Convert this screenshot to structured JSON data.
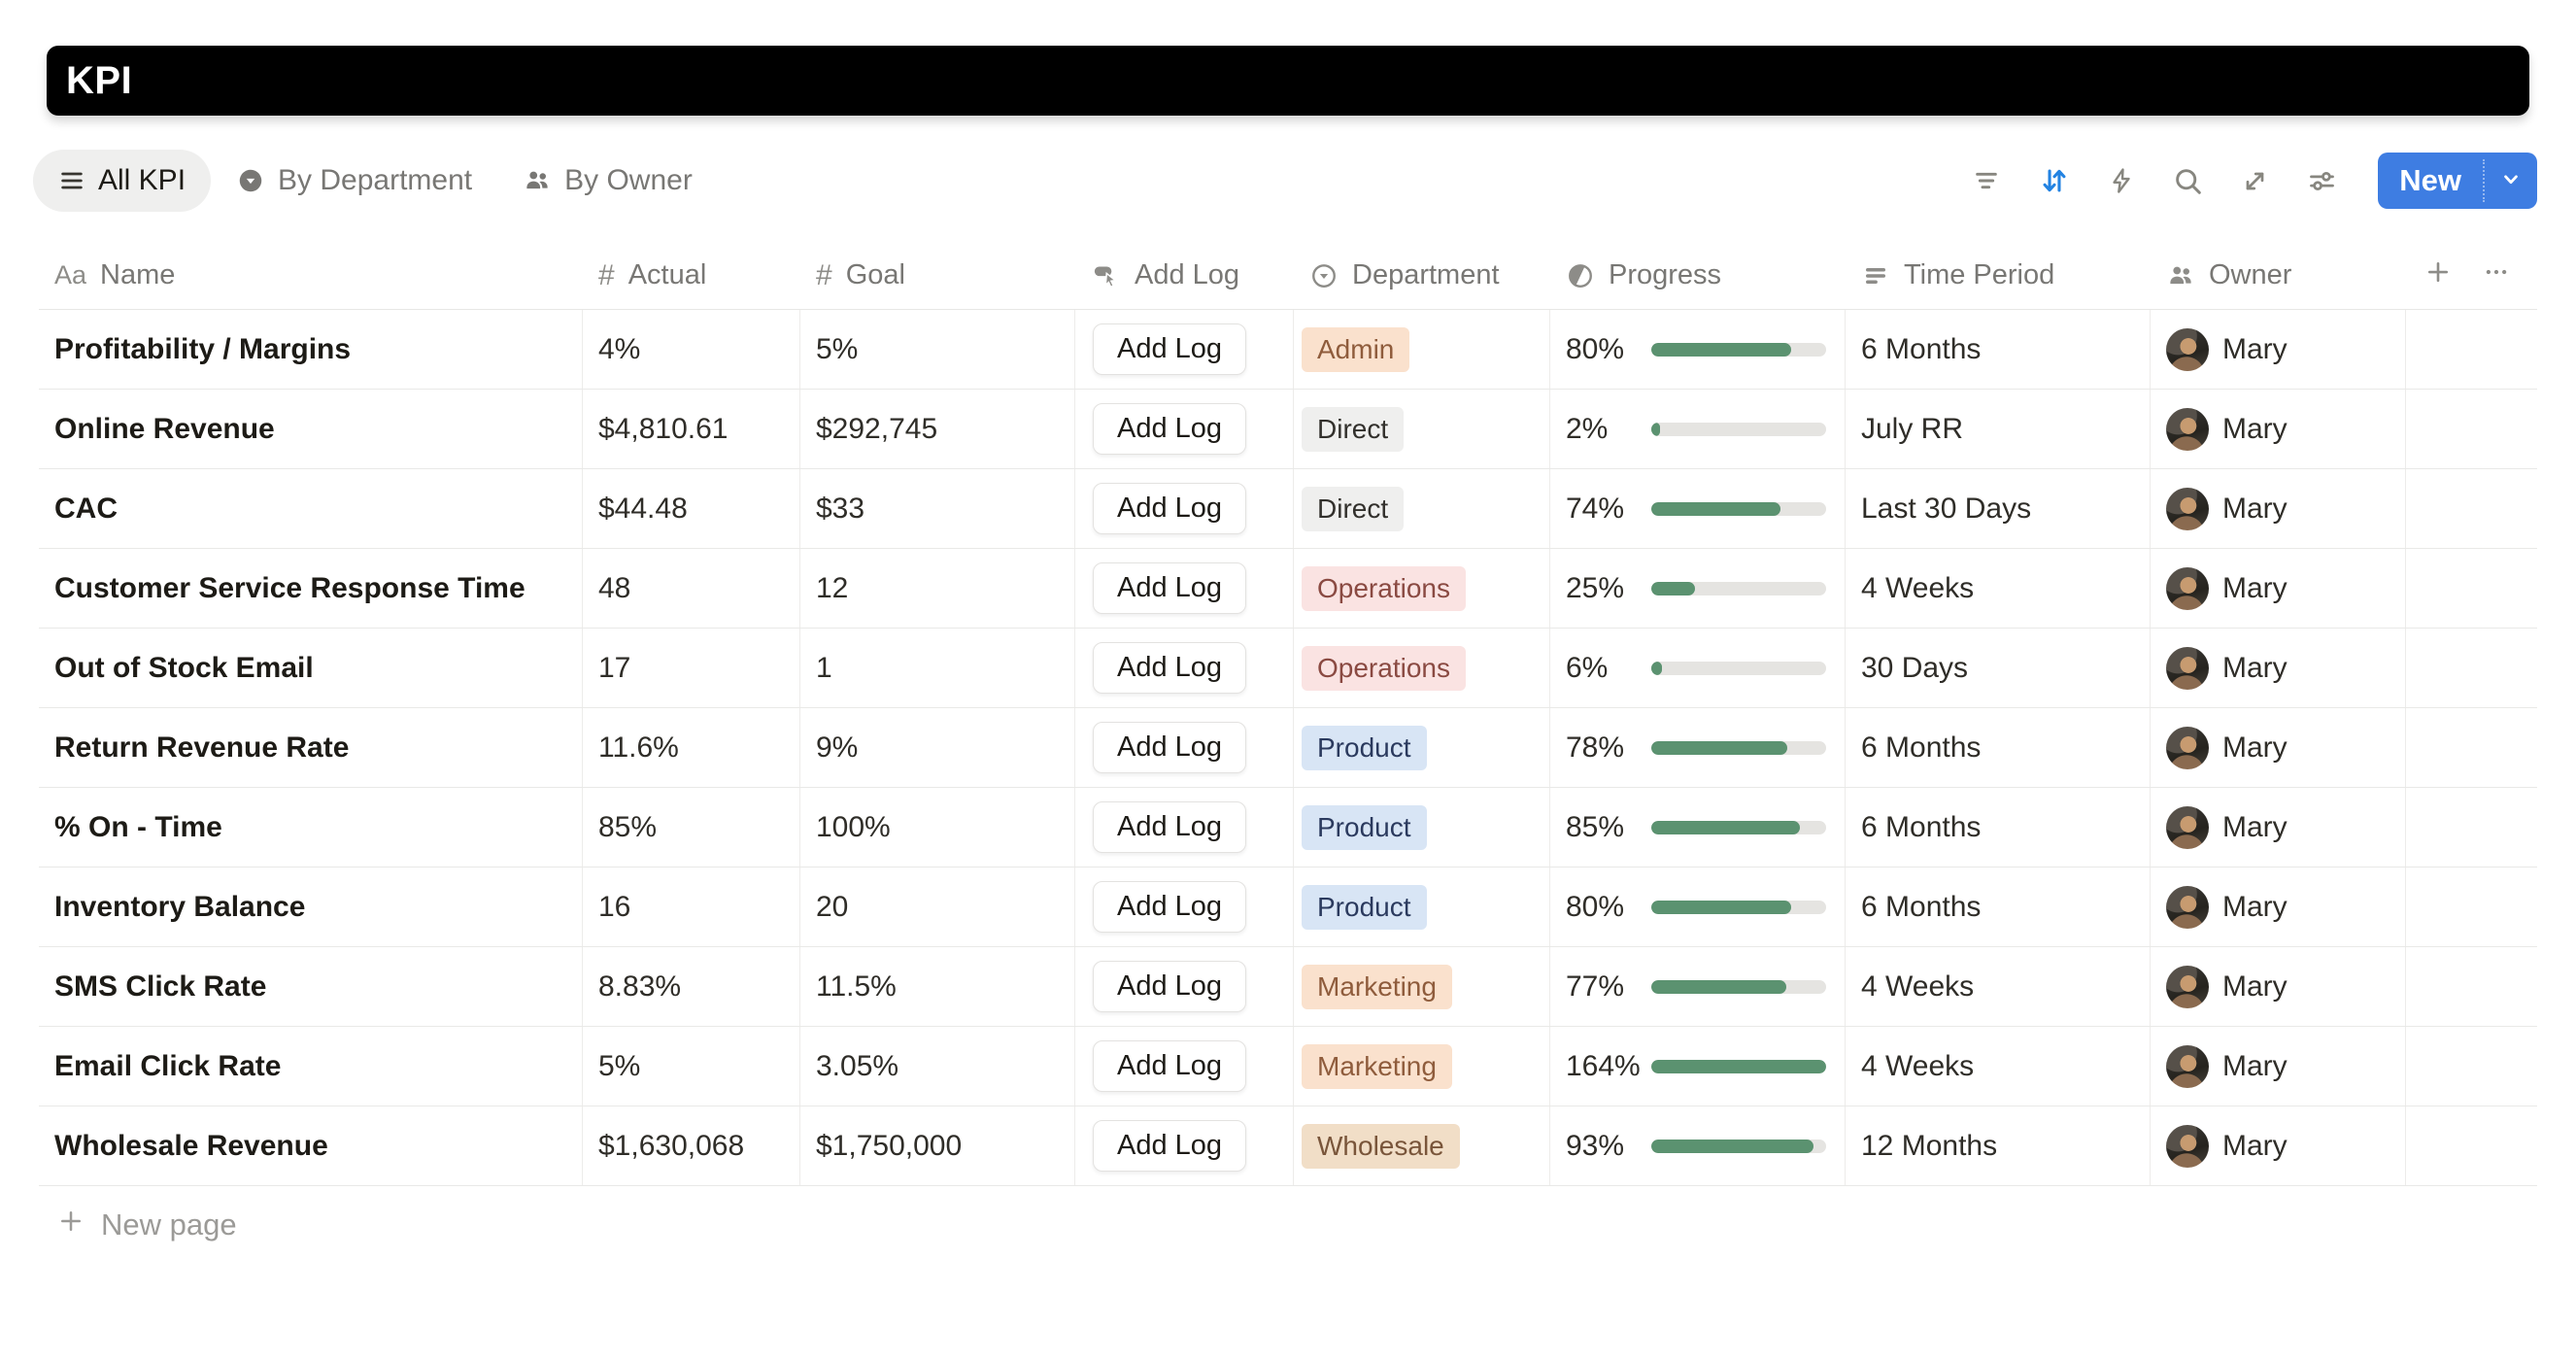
{
  "app": {
    "title": "KPI"
  },
  "tabs": [
    {
      "label": "All KPI",
      "active": true
    },
    {
      "label": "By Department",
      "active": false
    },
    {
      "label": "By Owner",
      "active": false
    }
  ],
  "toolbar": {
    "icons": [
      "filter-icon",
      "sort-icon",
      "automation-icon",
      "search-icon",
      "expand-icon",
      "view-settings-icon"
    ],
    "new_button_label": "New"
  },
  "table": {
    "add_log_label": "Add Log",
    "columns": [
      {
        "label": "Name",
        "icon": "text-icon"
      },
      {
        "label": "Actual",
        "icon": "number-icon"
      },
      {
        "label": "Goal",
        "icon": "number-icon"
      },
      {
        "label": "Add Log",
        "icon": "button-icon"
      },
      {
        "label": "Department",
        "icon": "select-icon"
      },
      {
        "label": "Progress",
        "icon": "progress-circle-icon"
      },
      {
        "label": "Time Period",
        "icon": "list-icon"
      },
      {
        "label": "Owner",
        "icon": "people-icon"
      }
    ],
    "rows": [
      {
        "name": "Profitability / Margins",
        "actual": "4%",
        "goal": "5%",
        "department": {
          "label": "Admin",
          "color": "orange"
        },
        "progress": {
          "label": "80%",
          "value": 80
        },
        "time_period": "6 Months",
        "owner": "Mary"
      },
      {
        "name": "Online Revenue",
        "actual": "$4,810.61",
        "goal": "$292,745",
        "department": {
          "label": "Direct",
          "color": "gray"
        },
        "progress": {
          "label": "2%",
          "value": 2
        },
        "time_period": "July RR",
        "owner": "Mary"
      },
      {
        "name": "CAC",
        "actual": "$44.48",
        "goal": "$33",
        "department": {
          "label": "Direct",
          "color": "gray"
        },
        "progress": {
          "label": "74%",
          "value": 74
        },
        "time_period": "Last 30 Days",
        "owner": "Mary"
      },
      {
        "name": "Customer Service Response Time",
        "actual": "48",
        "goal": "12",
        "department": {
          "label": "Operations",
          "color": "red"
        },
        "progress": {
          "label": "25%",
          "value": 25
        },
        "time_period": "4 Weeks",
        "owner": "Mary"
      },
      {
        "name": "Out of Stock Email",
        "actual": "17",
        "goal": "1",
        "department": {
          "label": "Operations",
          "color": "red"
        },
        "progress": {
          "label": "6%",
          "value": 6
        },
        "time_period": "30 Days",
        "owner": "Mary"
      },
      {
        "name": "Return Revenue Rate",
        "actual": "11.6%",
        "goal": "9%",
        "department": {
          "label": "Product",
          "color": "blue"
        },
        "progress": {
          "label": "78%",
          "value": 78
        },
        "time_period": "6 Months",
        "owner": "Mary"
      },
      {
        "name": "% On - Time",
        "actual": "85%",
        "goal": "100%",
        "department": {
          "label": "Product",
          "color": "blue"
        },
        "progress": {
          "label": "85%",
          "value": 85
        },
        "time_period": "6 Months",
        "owner": "Mary"
      },
      {
        "name": "Inventory Balance",
        "actual": "16",
        "goal": "20",
        "department": {
          "label": "Product",
          "color": "blue"
        },
        "progress": {
          "label": "80%",
          "value": 80
        },
        "time_period": "6 Months",
        "owner": "Mary"
      },
      {
        "name": "SMS Click Rate",
        "actual": "8.83%",
        "goal": "11.5%",
        "department": {
          "label": "Marketing",
          "color": "orange"
        },
        "progress": {
          "label": "77%",
          "value": 77
        },
        "time_period": "4 Weeks",
        "owner": "Mary"
      },
      {
        "name": "Email Click Rate",
        "actual": "5%",
        "goal": "3.05%",
        "department": {
          "label": "Marketing",
          "color": "orange"
        },
        "progress": {
          "label": "164%",
          "value": 164
        },
        "time_period": "4 Weeks",
        "owner": "Mary"
      },
      {
        "name": "Wholesale Revenue",
        "actual": "$1,630,068",
        "goal": "$1,750,000",
        "department": {
          "label": "Wholesale",
          "color": "brown"
        },
        "progress": {
          "label": "93%",
          "value": 93
        },
        "time_period": "12 Months",
        "owner": "Mary"
      }
    ]
  },
  "footer": {
    "new_page_label": "New page"
  },
  "colors": {
    "accent_blue": "#3E7DE2",
    "sort_icon_active": "#2383E2",
    "progress_green": "#5B9270",
    "progress_track": "#E5E4E1",
    "badges": {
      "orange": {
        "bg": "#FAE1CD",
        "text": "#8F5C3C"
      },
      "gray": {
        "bg": "#EFEFEE",
        "text": "#32302C"
      },
      "red": {
        "bg": "#FAE3E2",
        "text": "#8A4A42"
      },
      "blue": {
        "bg": "#D8E5F5",
        "text": "#2B3A5E"
      },
      "brown": {
        "bg": "#F1DEC7",
        "text": "#79553A"
      }
    }
  }
}
